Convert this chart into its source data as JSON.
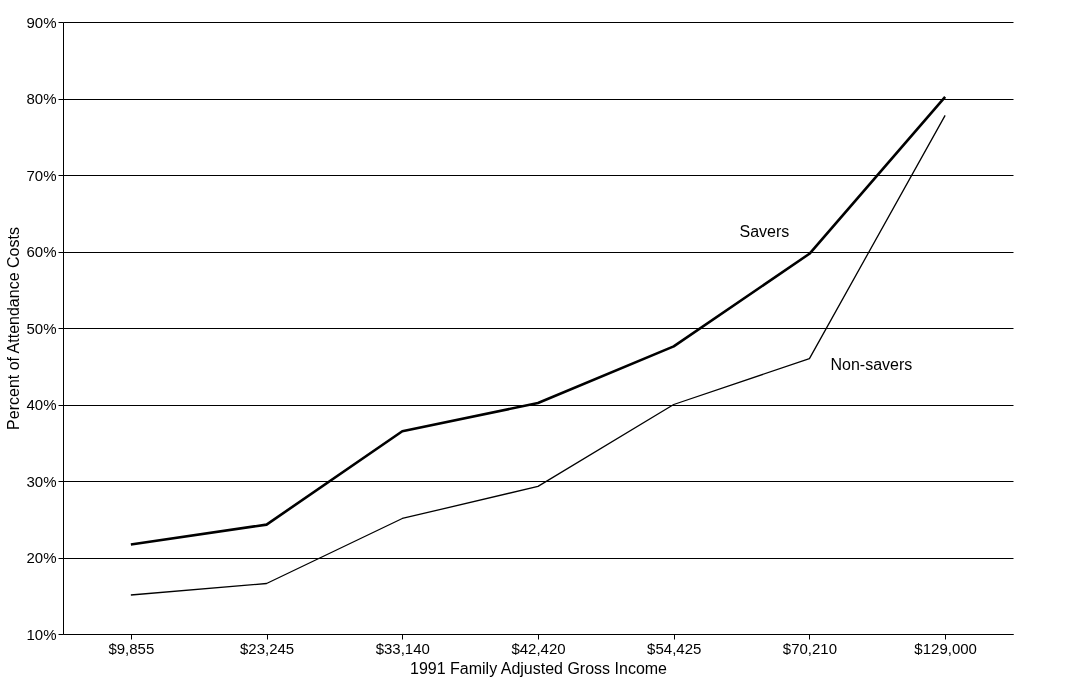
{
  "chart_data": {
    "type": "line",
    "xlabel": "1991 Family Adjusted Gross Income",
    "ylabel": "Percent of Attendance Costs",
    "categories": [
      "$9,855",
      "$23,245",
      "$33,140",
      "$42,420",
      "$54,425",
      "$70,210",
      "$129,000"
    ],
    "series": [
      {
        "name": "Savers",
        "color": "#000000",
        "values": [
          21.7,
          24.3,
          36.5,
          40.2,
          47.6,
          59.7,
          80.2
        ]
      },
      {
        "name": "Non-savers",
        "color": "#000000",
        "values": [
          15.1,
          16.6,
          25.1,
          29.3,
          40.0,
          46.0,
          77.8
        ]
      }
    ],
    "ylim": [
      10,
      90
    ],
    "yticks": [
      {
        "value": 10,
        "label": "10%"
      },
      {
        "value": 20,
        "label": "20%"
      },
      {
        "value": 30,
        "label": "30%"
      },
      {
        "value": 40,
        "label": "40%"
      },
      {
        "value": 50,
        "label": "50%"
      },
      {
        "value": 60,
        "label": "60%"
      },
      {
        "value": 70,
        "label": "70%"
      },
      {
        "value": 80,
        "label": "80%"
      },
      {
        "value": 90,
        "label": "90%"
      }
    ],
    "grid": "y",
    "marker": "none",
    "line_style": "solid"
  }
}
